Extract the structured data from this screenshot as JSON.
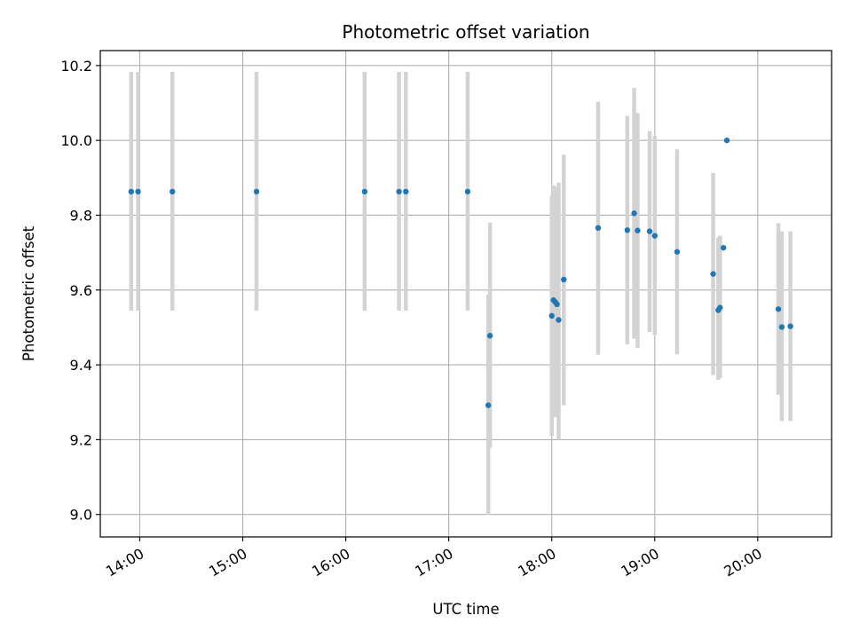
{
  "chart_data": {
    "type": "scatter",
    "title": "Photometric offset variation",
    "xlabel": "UTC time",
    "ylabel": "Photometric offset",
    "x_tick_labels": [
      "14:00",
      "15:00",
      "16:00",
      "17:00",
      "18:00",
      "19:00",
      "20:00"
    ],
    "y_tick_labels": [
      "9.0",
      "9.2",
      "9.4",
      "9.6",
      "9.8",
      "10.0",
      "10.2"
    ],
    "xlim": [
      "13:37",
      "20:43"
    ],
    "ylim": [
      8.94,
      10.24
    ],
    "grid": true,
    "marker_color": "#1f77b4",
    "errorbar_color": "#d3d3d3",
    "points": [
      {
        "time": "13:55",
        "offset": 9.863,
        "low": 9.545,
        "high": 10.183
      },
      {
        "time": "13:59",
        "offset": 9.863,
        "low": 9.545,
        "high": 10.183
      },
      {
        "time": "14:19",
        "offset": 9.863,
        "low": 9.545,
        "high": 10.183
      },
      {
        "time": "15:08",
        "offset": 9.863,
        "low": 9.545,
        "high": 10.183
      },
      {
        "time": "16:11",
        "offset": 9.863,
        "low": 9.545,
        "high": 10.183
      },
      {
        "time": "16:31",
        "offset": 9.863,
        "low": 9.545,
        "high": 10.183
      },
      {
        "time": "16:35",
        "offset": 9.863,
        "low": 9.545,
        "high": 10.183
      },
      {
        "time": "17:11",
        "offset": 9.863,
        "low": 9.545,
        "high": 10.183
      },
      {
        "time": "17:23",
        "offset": 9.292,
        "low": 8.998,
        "high": 9.588
      },
      {
        "time": "17:24",
        "offset": 9.478,
        "low": 9.178,
        "high": 9.78
      },
      {
        "time": "18:00",
        "offset": 9.531,
        "low": 9.21,
        "high": 9.852
      },
      {
        "time": "18:01",
        "offset": 9.573,
        "low": 9.265,
        "high": 9.88
      },
      {
        "time": "18:02",
        "offset": 9.568,
        "low": 9.26,
        "high": 9.875
      },
      {
        "time": "18:03",
        "offset": 9.562,
        "low": 9.26,
        "high": 9.87
      },
      {
        "time": "18:04",
        "offset": 9.52,
        "low": 9.2,
        "high": 9.887
      },
      {
        "time": "18:07",
        "offset": 9.628,
        "low": 9.292,
        "high": 9.962
      },
      {
        "time": "18:27",
        "offset": 9.766,
        "low": 9.427,
        "high": 10.103
      },
      {
        "time": "18:44",
        "offset": 9.76,
        "low": 9.455,
        "high": 10.065
      },
      {
        "time": "18:48",
        "offset": 9.805,
        "low": 9.47,
        "high": 10.14
      },
      {
        "time": "18:50",
        "offset": 9.759,
        "low": 9.445,
        "high": 10.073
      },
      {
        "time": "18:57",
        "offset": 9.757,
        "low": 9.488,
        "high": 10.025
      },
      {
        "time": "19:00",
        "offset": 9.745,
        "low": 9.48,
        "high": 10.012
      },
      {
        "time": "19:13",
        "offset": 9.702,
        "low": 9.428,
        "high": 9.976
      },
      {
        "time": "19:34",
        "offset": 9.643,
        "low": 9.373,
        "high": 9.913
      },
      {
        "time": "19:37",
        "offset": 9.546,
        "low": 9.36,
        "high": 9.74
      },
      {
        "time": "19:38",
        "offset": 9.553,
        "low": 9.365,
        "high": 9.745
      },
      {
        "time": "19:40",
        "offset": 9.713,
        "low": 9.713,
        "high": 9.713
      },
      {
        "time": "19:42",
        "offset": 10.0,
        "low": 10.0,
        "high": 10.0
      },
      {
        "time": "20:12",
        "offset": 9.549,
        "low": 9.32,
        "high": 9.779
      },
      {
        "time": "20:14",
        "offset": 9.501,
        "low": 9.25,
        "high": 9.757
      },
      {
        "time": "20:19",
        "offset": 9.503,
        "low": 9.25,
        "high": 9.757
      }
    ]
  }
}
